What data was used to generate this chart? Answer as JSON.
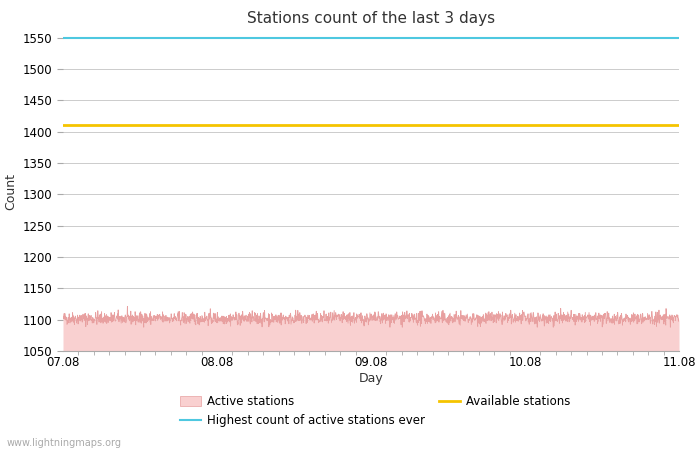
{
  "title": "Stations count of the last 3 days",
  "xlabel": "Day",
  "ylabel": "Count",
  "ylim": [
    1050,
    1560
  ],
  "yticks": [
    1050,
    1100,
    1150,
    1200,
    1250,
    1300,
    1350,
    1400,
    1450,
    1500,
    1550
  ],
  "x_start": 0,
  "x_end": 4,
  "xtick_positions": [
    0,
    1,
    2,
    3,
    4
  ],
  "xtick_labels": [
    "07.08",
    "08.08",
    "09.08",
    "10.08",
    "11.08"
  ],
  "highest_count": 1550,
  "available_stations": 1410,
  "active_mean": 1102,
  "active_noise": 5,
  "highest_color": "#4ec8e0",
  "available_color": "#f5c400",
  "active_fill_color": "#f9d0d0",
  "active_line_color": "#e8a0a0",
  "background_color": "#ffffff",
  "grid_color": "#cccccc",
  "watermark": "www.lightningmaps.org",
  "title_fontsize": 11,
  "axis_label_fontsize": 9,
  "tick_fontsize": 8.5,
  "legend_fontsize": 8.5,
  "num_points": 2000,
  "seed": 42
}
